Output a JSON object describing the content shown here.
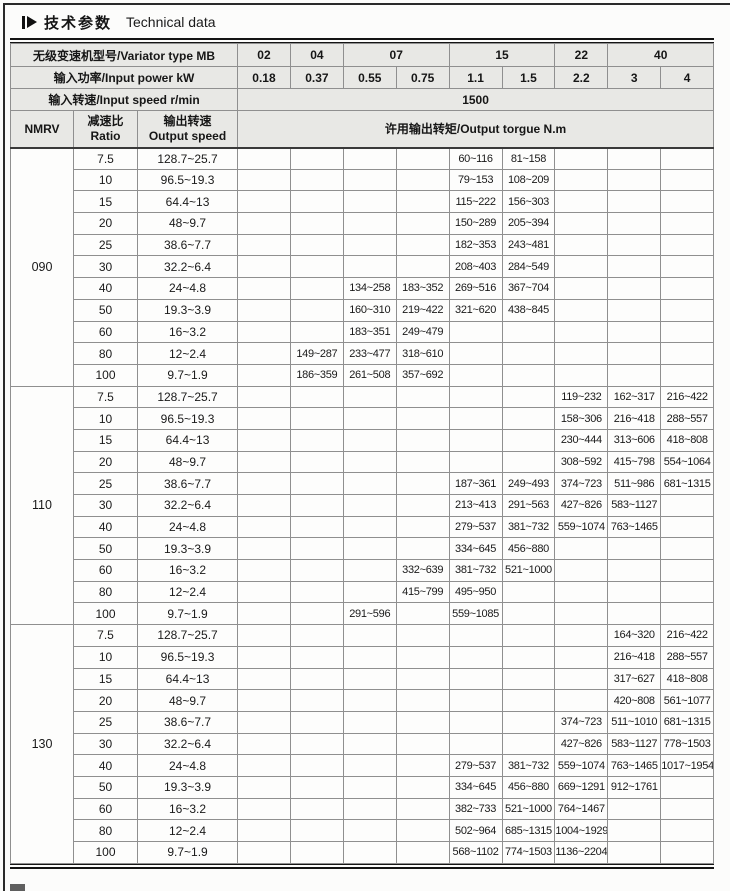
{
  "title": {
    "zh": "技术参数",
    "en": "Technical data"
  },
  "header": {
    "model_label": "无级变速机型号/Variator type MB",
    "model_groups": [
      {
        "label": "02",
        "span": 1
      },
      {
        "label": "04",
        "span": 1
      },
      {
        "label": "07",
        "span": 2
      },
      {
        "label": "15",
        "span": 2
      },
      {
        "label": "22",
        "span": 1
      },
      {
        "label": "40",
        "span": 2
      }
    ],
    "power_label": "输入功率/Input power kW",
    "powers": [
      "0.18",
      "0.37",
      "0.55",
      "0.75",
      "1.1",
      "1.5",
      "2.2",
      "3",
      "4"
    ],
    "speed_label": "输入转速/Input speed r/min",
    "speed_value": "1500",
    "col_nmrv": "NMRV",
    "col_ratio_zh": "减速比",
    "col_ratio_en": "Ratio",
    "col_output_zh": "输出转速",
    "col_output_en": "Output speed",
    "col_torque": "许用输出转矩/Output torgue N.m"
  },
  "sections": [
    {
      "model": "090",
      "rows": [
        {
          "ratio": "7.5",
          "speed": "128.7~25.7",
          "torques": [
            "",
            "",
            "",
            "",
            "60~116",
            "81~158",
            "",
            "",
            ""
          ]
        },
        {
          "ratio": "10",
          "speed": "96.5~19.3",
          "torques": [
            "",
            "",
            "",
            "",
            "79~153",
            "108~209",
            "",
            "",
            ""
          ]
        },
        {
          "ratio": "15",
          "speed": "64.4~13",
          "torques": [
            "",
            "",
            "",
            "",
            "115~222",
            "156~303",
            "",
            "",
            ""
          ]
        },
        {
          "ratio": "20",
          "speed": "48~9.7",
          "torques": [
            "",
            "",
            "",
            "",
            "150~289",
            "205~394",
            "",
            "",
            ""
          ]
        },
        {
          "ratio": "25",
          "speed": "38.6~7.7",
          "torques": [
            "",
            "",
            "",
            "",
            "182~353",
            "243~481",
            "",
            "",
            ""
          ]
        },
        {
          "ratio": "30",
          "speed": "32.2~6.4",
          "torques": [
            "",
            "",
            "",
            "",
            "208~403",
            "284~549",
            "",
            "",
            ""
          ]
        },
        {
          "ratio": "40",
          "speed": "24~4.8",
          "torques": [
            "",
            "",
            "134~258",
            "183~352",
            "269~516",
            "367~704",
            "",
            "",
            ""
          ]
        },
        {
          "ratio": "50",
          "speed": "19.3~3.9",
          "torques": [
            "",
            "",
            "160~310",
            "219~422",
            "321~620",
            "438~845",
            "",
            "",
            ""
          ]
        },
        {
          "ratio": "60",
          "speed": "16~3.2",
          "torques": [
            "",
            "",
            "183~351",
            "249~479",
            "",
            "",
            "",
            "",
            ""
          ]
        },
        {
          "ratio": "80",
          "speed": "12~2.4",
          "torques": [
            "",
            "149~287",
            "233~477",
            "318~610",
            "",
            "",
            "",
            "",
            ""
          ]
        },
        {
          "ratio": "100",
          "speed": "9.7~1.9",
          "torques": [
            "",
            "186~359",
            "261~508",
            "357~692",
            "",
            "",
            "",
            "",
            ""
          ]
        }
      ]
    },
    {
      "model": "110",
      "rows": [
        {
          "ratio": "7.5",
          "speed": "128.7~25.7",
          "torques": [
            "",
            "",
            "",
            "",
            "",
            "",
            "119~232",
            "162~317",
            "216~422"
          ]
        },
        {
          "ratio": "10",
          "speed": "96.5~19.3",
          "torques": [
            "",
            "",
            "",
            "",
            "",
            "",
            "158~306",
            "216~418",
            "288~557"
          ]
        },
        {
          "ratio": "15",
          "speed": "64.4~13",
          "torques": [
            "",
            "",
            "",
            "",
            "",
            "",
            "230~444",
            "313~606",
            "418~808"
          ]
        },
        {
          "ratio": "20",
          "speed": "48~9.7",
          "torques": [
            "",
            "",
            "",
            "",
            "",
            "",
            "308~592",
            "415~798",
            "554~1064"
          ]
        },
        {
          "ratio": "25",
          "speed": "38.6~7.7",
          "torques": [
            "",
            "",
            "",
            "",
            "187~361",
            "249~493",
            "374~723",
            "511~986",
            "681~1315"
          ]
        },
        {
          "ratio": "30",
          "speed": "32.2~6.4",
          "torques": [
            "",
            "",
            "",
            "",
            "213~413",
            "291~563",
            "427~826",
            "583~1127",
            ""
          ]
        },
        {
          "ratio": "40",
          "speed": "24~4.8",
          "torques": [
            "",
            "",
            "",
            "",
            "279~537",
            "381~732",
            "559~1074",
            "763~1465",
            ""
          ]
        },
        {
          "ratio": "50",
          "speed": "19.3~3.9",
          "torques": [
            "",
            "",
            "",
            "",
            "334~645",
            "456~880",
            "",
            "",
            ""
          ]
        },
        {
          "ratio": "60",
          "speed": "16~3.2",
          "torques": [
            "",
            "",
            "",
            "332~639",
            "381~732",
            "521~1000",
            "",
            "",
            ""
          ]
        },
        {
          "ratio": "80",
          "speed": "12~2.4",
          "torques": [
            "",
            "",
            "",
            "415~799",
            "495~950",
            "",
            "",
            "",
            ""
          ]
        },
        {
          "ratio": "100",
          "speed": "9.7~1.9",
          "torques": [
            "",
            "",
            "291~596",
            "",
            "559~1085",
            "",
            "",
            "",
            ""
          ]
        }
      ]
    },
    {
      "model": "130",
      "rows": [
        {
          "ratio": "7.5",
          "speed": "128.7~25.7",
          "torques": [
            "",
            "",
            "",
            "",
            "",
            "",
            "",
            "164~320",
            "216~422"
          ]
        },
        {
          "ratio": "10",
          "speed": "96.5~19.3",
          "torques": [
            "",
            "",
            "",
            "",
            "",
            "",
            "",
            "216~418",
            "288~557"
          ]
        },
        {
          "ratio": "15",
          "speed": "64.4~13",
          "torques": [
            "",
            "",
            "",
            "",
            "",
            "",
            "",
            "317~627",
            "418~808"
          ]
        },
        {
          "ratio": "20",
          "speed": "48~9.7",
          "torques": [
            "",
            "",
            "",
            "",
            "",
            "",
            "",
            "420~808",
            "561~1077"
          ]
        },
        {
          "ratio": "25",
          "speed": "38.6~7.7",
          "torques": [
            "",
            "",
            "",
            "",
            "",
            "",
            "374~723",
            "511~1010",
            "681~1315"
          ]
        },
        {
          "ratio": "30",
          "speed": "32.2~6.4",
          "torques": [
            "",
            "",
            "",
            "",
            "",
            "",
            "427~826",
            "583~1127",
            "778~1503"
          ]
        },
        {
          "ratio": "40",
          "speed": "24~4.8",
          "torques": [
            "",
            "",
            "",
            "",
            "279~537",
            "381~732",
            "559~1074",
            "763~1465",
            "1017~1954"
          ]
        },
        {
          "ratio": "50",
          "speed": "19.3~3.9",
          "torques": [
            "",
            "",
            "",
            "",
            "334~645",
            "456~880",
            "669~1291",
            "912~1761",
            ""
          ]
        },
        {
          "ratio": "60",
          "speed": "16~3.2",
          "torques": [
            "",
            "",
            "",
            "",
            "382~733",
            "521~1000",
            "764~1467",
            "",
            ""
          ]
        },
        {
          "ratio": "80",
          "speed": "12~2.4",
          "torques": [
            "",
            "",
            "",
            "",
            "502~964",
            "685~1315",
            "1004~1929",
            "",
            ""
          ]
        },
        {
          "ratio": "100",
          "speed": "9.7~1.9",
          "torques": [
            "",
            "",
            "",
            "",
            "568~1102",
            "774~1503",
            "1136~2204",
            "",
            ""
          ]
        }
      ]
    }
  ]
}
